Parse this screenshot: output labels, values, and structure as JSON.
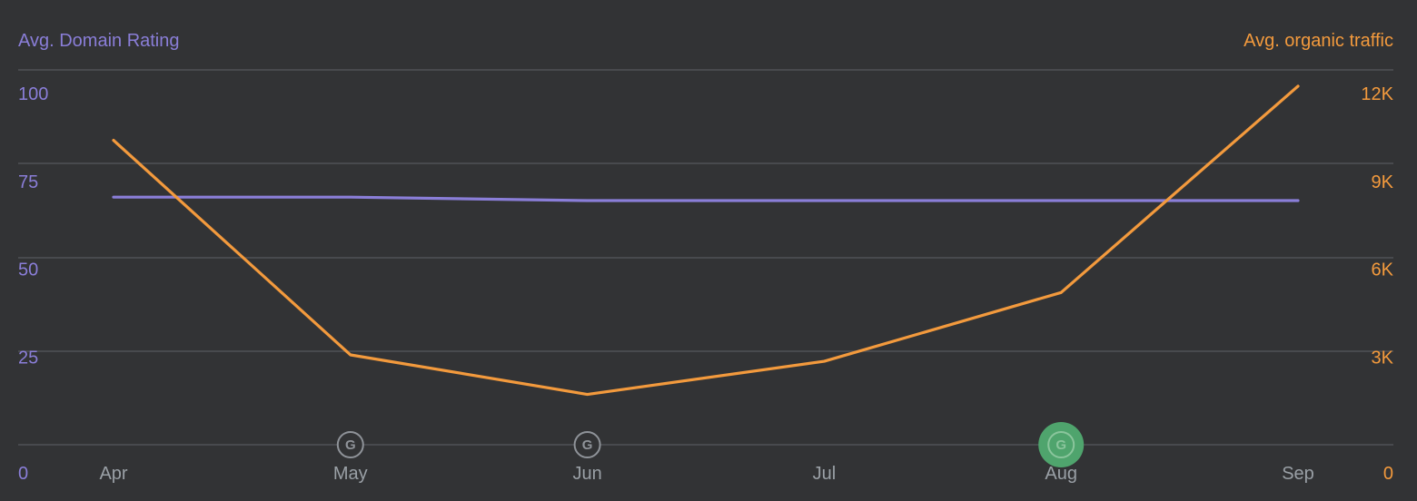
{
  "chart_data": {
    "type": "line",
    "title": "",
    "categories": [
      "Apr",
      "May",
      "Jun",
      "Jul",
      "Aug",
      "Sep"
    ],
    "y_left": {
      "label": "Avg. Domain Rating",
      "ylim": [
        0,
        100
      ],
      "ticks": [
        "0",
        "25",
        "50",
        "75",
        "100"
      ],
      "tick_values": [
        0,
        25,
        50,
        75,
        100
      ],
      "color": "#8a7ed8"
    },
    "y_right": {
      "label": "Avg. organic traffic",
      "ylim": [
        0,
        12000
      ],
      "ticks": [
        "0",
        "3K",
        "6K",
        "9K",
        "12K"
      ],
      "tick_values": [
        0,
        3000,
        6000,
        9000,
        12000
      ],
      "color": "#f39a3d"
    },
    "series": [
      {
        "axis": "left",
        "color": "#8a7ed8",
        "values": [
          70.5,
          70.5,
          69.5,
          69.5,
          69.5,
          69.5
        ]
      },
      {
        "axis": "right",
        "color": "#f39a3d",
        "values": [
          10400,
          3070,
          1720,
          2850,
          5200,
          12250
        ]
      }
    ],
    "markers": [
      {
        "label": "G",
        "category": "May",
        "active": false,
        "icon": "google-update-icon"
      },
      {
        "label": "G",
        "category": "Jun",
        "active": false,
        "icon": "google-update-icon"
      },
      {
        "label": "G",
        "category": "Aug",
        "active": true,
        "icon": "google-update-icon",
        "active_color": "#4fa46d"
      }
    ],
    "grid": true,
    "legend": "none"
  }
}
